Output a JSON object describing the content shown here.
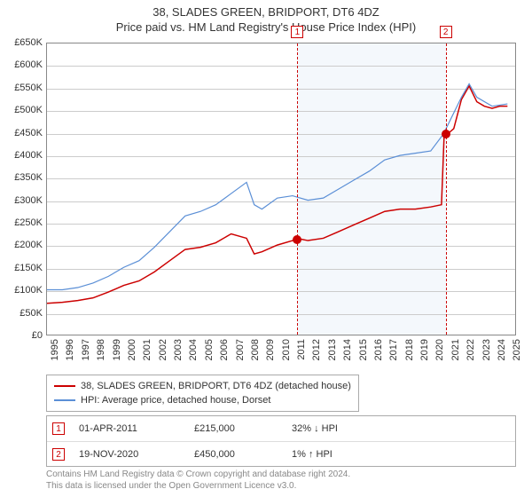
{
  "title_line1": "38, SLADES GREEN, BRIDPORT, DT6 4DZ",
  "title_line2": "Price paid vs. HM Land Registry's House Price Index (HPI)",
  "chart": {
    "type": "line",
    "background_color": "#ffffff",
    "grid_color": "#cccccc",
    "border_color": "#888888",
    "shade_color": "#f4f8fc",
    "x_range": [
      1995,
      2025.5
    ],
    "x_ticks": [
      1995,
      1996,
      1997,
      1998,
      1999,
      2000,
      2001,
      2002,
      2003,
      2004,
      2005,
      2006,
      2007,
      2008,
      2009,
      2010,
      2011,
      2012,
      2013,
      2014,
      2015,
      2016,
      2017,
      2018,
      2019,
      2020,
      2021,
      2022,
      2023,
      2024,
      2025
    ],
    "y_range": [
      0,
      650000
    ],
    "y_ticks": [
      0,
      50000,
      100000,
      150000,
      200000,
      250000,
      300000,
      350000,
      400000,
      450000,
      500000,
      550000,
      600000,
      650000
    ],
    "y_tick_labels": [
      "£0",
      "£50K",
      "£100K",
      "£150K",
      "£200K",
      "£250K",
      "£300K",
      "£350K",
      "£400K",
      "£450K",
      "£500K",
      "£550K",
      "£600K",
      "£650K"
    ],
    "x_tick_rotation": -90,
    "shade_x_start": 2011.25,
    "shade_x_end": 2020.88,
    "series": [
      {
        "name": "property",
        "label": "38, SLADES GREEN, BRIDPORT, DT6 4DZ (detached house)",
        "color": "#cc0000",
        "line_width": 1.5,
        "points": [
          [
            1995,
            70000
          ],
          [
            1996,
            72000
          ],
          [
            1997,
            76000
          ],
          [
            1998,
            82000
          ],
          [
            1999,
            95000
          ],
          [
            2000,
            110000
          ],
          [
            2001,
            120000
          ],
          [
            2002,
            140000
          ],
          [
            2003,
            165000
          ],
          [
            2004,
            190000
          ],
          [
            2005,
            195000
          ],
          [
            2006,
            205000
          ],
          [
            2007,
            225000
          ],
          [
            2008,
            215000
          ],
          [
            2008.5,
            180000
          ],
          [
            2009,
            185000
          ],
          [
            2010,
            200000
          ],
          [
            2011,
            210000
          ],
          [
            2011.25,
            215000
          ],
          [
            2012,
            210000
          ],
          [
            2013,
            215000
          ],
          [
            2014,
            230000
          ],
          [
            2015,
            245000
          ],
          [
            2016,
            260000
          ],
          [
            2017,
            275000
          ],
          [
            2018,
            280000
          ],
          [
            2019,
            280000
          ],
          [
            2020,
            285000
          ],
          [
            2020.7,
            290000
          ],
          [
            2020.88,
            450000
          ],
          [
            2021,
            445000
          ],
          [
            2021.5,
            460000
          ],
          [
            2022,
            525000
          ],
          [
            2022.5,
            555000
          ],
          [
            2023,
            520000
          ],
          [
            2023.5,
            510000
          ],
          [
            2024,
            505000
          ],
          [
            2024.5,
            510000
          ],
          [
            2025,
            510000
          ]
        ]
      },
      {
        "name": "hpi",
        "label": "HPI: Average price, detached house, Dorset",
        "color": "#5b8fd6",
        "line_width": 1.2,
        "points": [
          [
            1995,
            100000
          ],
          [
            1996,
            100000
          ],
          [
            1997,
            105000
          ],
          [
            1998,
            115000
          ],
          [
            1999,
            130000
          ],
          [
            2000,
            150000
          ],
          [
            2001,
            165000
          ],
          [
            2002,
            195000
          ],
          [
            2003,
            230000
          ],
          [
            2004,
            265000
          ],
          [
            2005,
            275000
          ],
          [
            2006,
            290000
          ],
          [
            2007,
            315000
          ],
          [
            2008,
            340000
          ],
          [
            2008.5,
            290000
          ],
          [
            2009,
            280000
          ],
          [
            2010,
            305000
          ],
          [
            2011,
            310000
          ],
          [
            2012,
            300000
          ],
          [
            2013,
            305000
          ],
          [
            2014,
            325000
          ],
          [
            2015,
            345000
          ],
          [
            2016,
            365000
          ],
          [
            2017,
            390000
          ],
          [
            2018,
            400000
          ],
          [
            2019,
            405000
          ],
          [
            2020,
            410000
          ],
          [
            2020.88,
            450000
          ],
          [
            2021,
            460000
          ],
          [
            2022,
            530000
          ],
          [
            2022.5,
            560000
          ],
          [
            2023,
            530000
          ],
          [
            2024,
            510000
          ],
          [
            2025,
            515000
          ]
        ]
      }
    ],
    "events": [
      {
        "flag": "1",
        "x": 2011.25,
        "marker_y": 215000
      },
      {
        "flag": "2",
        "x": 2020.88,
        "marker_y": 450000
      }
    ]
  },
  "legend": {
    "items": [
      {
        "color": "#cc0000",
        "label": "38, SLADES GREEN, BRIDPORT, DT6 4DZ (detached house)"
      },
      {
        "color": "#5b8fd6",
        "label": "HPI: Average price, detached house, Dorset"
      }
    ]
  },
  "sales": [
    {
      "flag": "1",
      "date": "01-APR-2011",
      "price": "£215,000",
      "hpi_pct": "32%",
      "hpi_arrow": "↓",
      "hpi_suffix": "HPI"
    },
    {
      "flag": "2",
      "date": "19-NOV-2020",
      "price": "£450,000",
      "hpi_pct": "1%",
      "hpi_arrow": "↑",
      "hpi_suffix": "HPI"
    }
  ],
  "footnote_line1": "Contains HM Land Registry data © Crown copyright and database right 2024.",
  "footnote_line2": "This data is licensed under the Open Government Licence v3.0.",
  "colors": {
    "event_line": "#cc0000",
    "text": "#333333",
    "footnote": "#888888"
  },
  "fonts": {
    "title_size": 13,
    "tick_size": 11,
    "legend_size": 11,
    "footnote_size": 10
  }
}
